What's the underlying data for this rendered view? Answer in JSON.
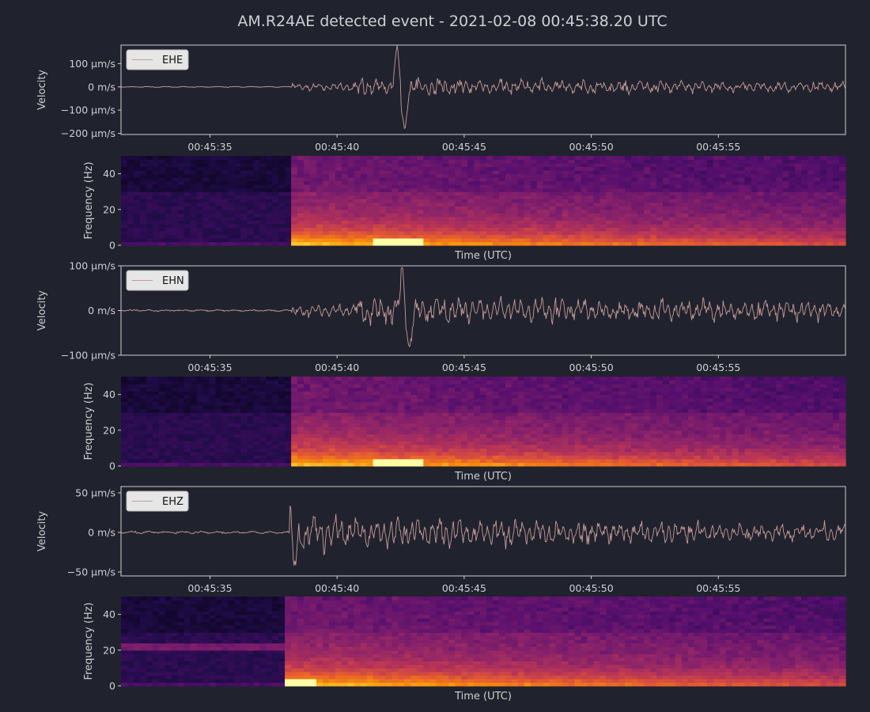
{
  "title": "AM.R24AE detected event - 2021-02-08 00:45:38.20 UTC",
  "colors": {
    "background": "#20232d",
    "trace": "#c79a9a",
    "frame": "#cfcfd4",
    "legend_bg": "#e6e6e6"
  },
  "chart_data": [
    {
      "type": "line",
      "series": [
        {
          "name": "EHE"
        }
      ],
      "ylabel": "Velocity",
      "ylim": [
        -205,
        180
      ],
      "yticks": [
        {
          "v": 100,
          "label": "100 µm/s"
        },
        {
          "v": 0,
          "label": "0 m/s"
        },
        {
          "v": -100,
          "label": "−100 µm/s"
        },
        {
          "v": -200,
          "label": "−200 µm/s"
        }
      ],
      "xlim": [
        31.5,
        60
      ],
      "xticks": [
        {
          "v": 35,
          "label": "00:45:35"
        },
        {
          "v": 40,
          "label": "00:45:40"
        },
        {
          "v": 45,
          "label": "00:45:45"
        },
        {
          "v": 50,
          "label": "00:45:50"
        },
        {
          "v": 55,
          "label": "00:45:55"
        }
      ],
      "legend": "top-left",
      "onset_s": 38.2,
      "pre_noise": 1.2,
      "post_amplitude": 30,
      "peak_time_s": 42.5,
      "peak_values": [
        150,
        -185
      ],
      "decay": 0.03
    },
    {
      "type": "heatmap",
      "xlabel": "Time (UTC)",
      "ylabel": "Frequency (Hz)",
      "ylim": [
        0,
        50
      ],
      "yticks": [
        {
          "v": 40,
          "label": "40"
        },
        {
          "v": 20,
          "label": "20"
        },
        {
          "v": 0,
          "label": "0"
        }
      ],
      "xlim": [
        31.5,
        60
      ],
      "colormap": "inferno",
      "onset_s": 38.3,
      "hotspot_time_s": 42.5
    },
    {
      "type": "line",
      "series": [
        {
          "name": "EHN"
        }
      ],
      "ylabel": "Velocity",
      "ylim": [
        -100,
        100
      ],
      "yticks": [
        {
          "v": 100,
          "label": "100 µm/s"
        },
        {
          "v": 0,
          "label": "0 m/s"
        },
        {
          "v": -100,
          "label": "−100 µm/s"
        }
      ],
      "xlim": [
        31.5,
        60
      ],
      "xticks": [
        {
          "v": 35,
          "label": "00:45:35"
        },
        {
          "v": 40,
          "label": "00:45:40"
        },
        {
          "v": 45,
          "label": "00:45:45"
        },
        {
          "v": 50,
          "label": "00:45:50"
        },
        {
          "v": 55,
          "label": "00:45:55"
        }
      ],
      "legend": "top-left",
      "onset_s": 38.2,
      "pre_noise": 1.0,
      "post_amplitude": 22,
      "peak_time_s": 42.7,
      "peak_values": [
        85,
        -83
      ],
      "decay": 0.015
    },
    {
      "type": "heatmap",
      "xlabel": "Time (UTC)",
      "ylabel": "Frequency (Hz)",
      "ylim": [
        0,
        50
      ],
      "yticks": [
        {
          "v": 40,
          "label": "40"
        },
        {
          "v": 20,
          "label": "20"
        },
        {
          "v": 0,
          "label": "0"
        }
      ],
      "xlim": [
        31.5,
        60
      ],
      "colormap": "inferno",
      "onset_s": 38.3,
      "hotspot_time_s": 42.5
    },
    {
      "type": "line",
      "series": [
        {
          "name": "EHZ"
        }
      ],
      "ylabel": "Velocity",
      "ylim": [
        -55,
        58
      ],
      "yticks": [
        {
          "v": 50,
          "label": "50 µm/s"
        },
        {
          "v": 0,
          "label": "0 m/s"
        },
        {
          "v": -50,
          "label": "−50 µm/s"
        }
      ],
      "xlim": [
        31.5,
        60
      ],
      "xticks": [
        {
          "v": 35,
          "label": "00:45:35"
        },
        {
          "v": 40,
          "label": "00:45:40"
        },
        {
          "v": 45,
          "label": "00:45:45"
        },
        {
          "v": 50,
          "label": "00:45:50"
        },
        {
          "v": 55,
          "label": "00:45:55"
        }
      ],
      "legend": "top-left",
      "onset_s": 38.15,
      "pre_noise": 0.8,
      "post_amplitude": 16,
      "peak_time_s": 38.2,
      "peak_values": [
        50,
        -42
      ],
      "decay": 0.035
    },
    {
      "type": "heatmap",
      "xlabel": "Time (UTC)",
      "ylabel": "Frequency (Hz)",
      "ylim": [
        0,
        50
      ],
      "yticks": [
        {
          "v": 40,
          "label": "40"
        },
        {
          "v": 20,
          "label": "20"
        },
        {
          "v": 0,
          "label": "0"
        }
      ],
      "xlim": [
        31.5,
        60
      ],
      "colormap": "inferno",
      "onset_s": 38.0,
      "hotspot_time_s": 38.3,
      "line_hz": 22
    }
  ]
}
